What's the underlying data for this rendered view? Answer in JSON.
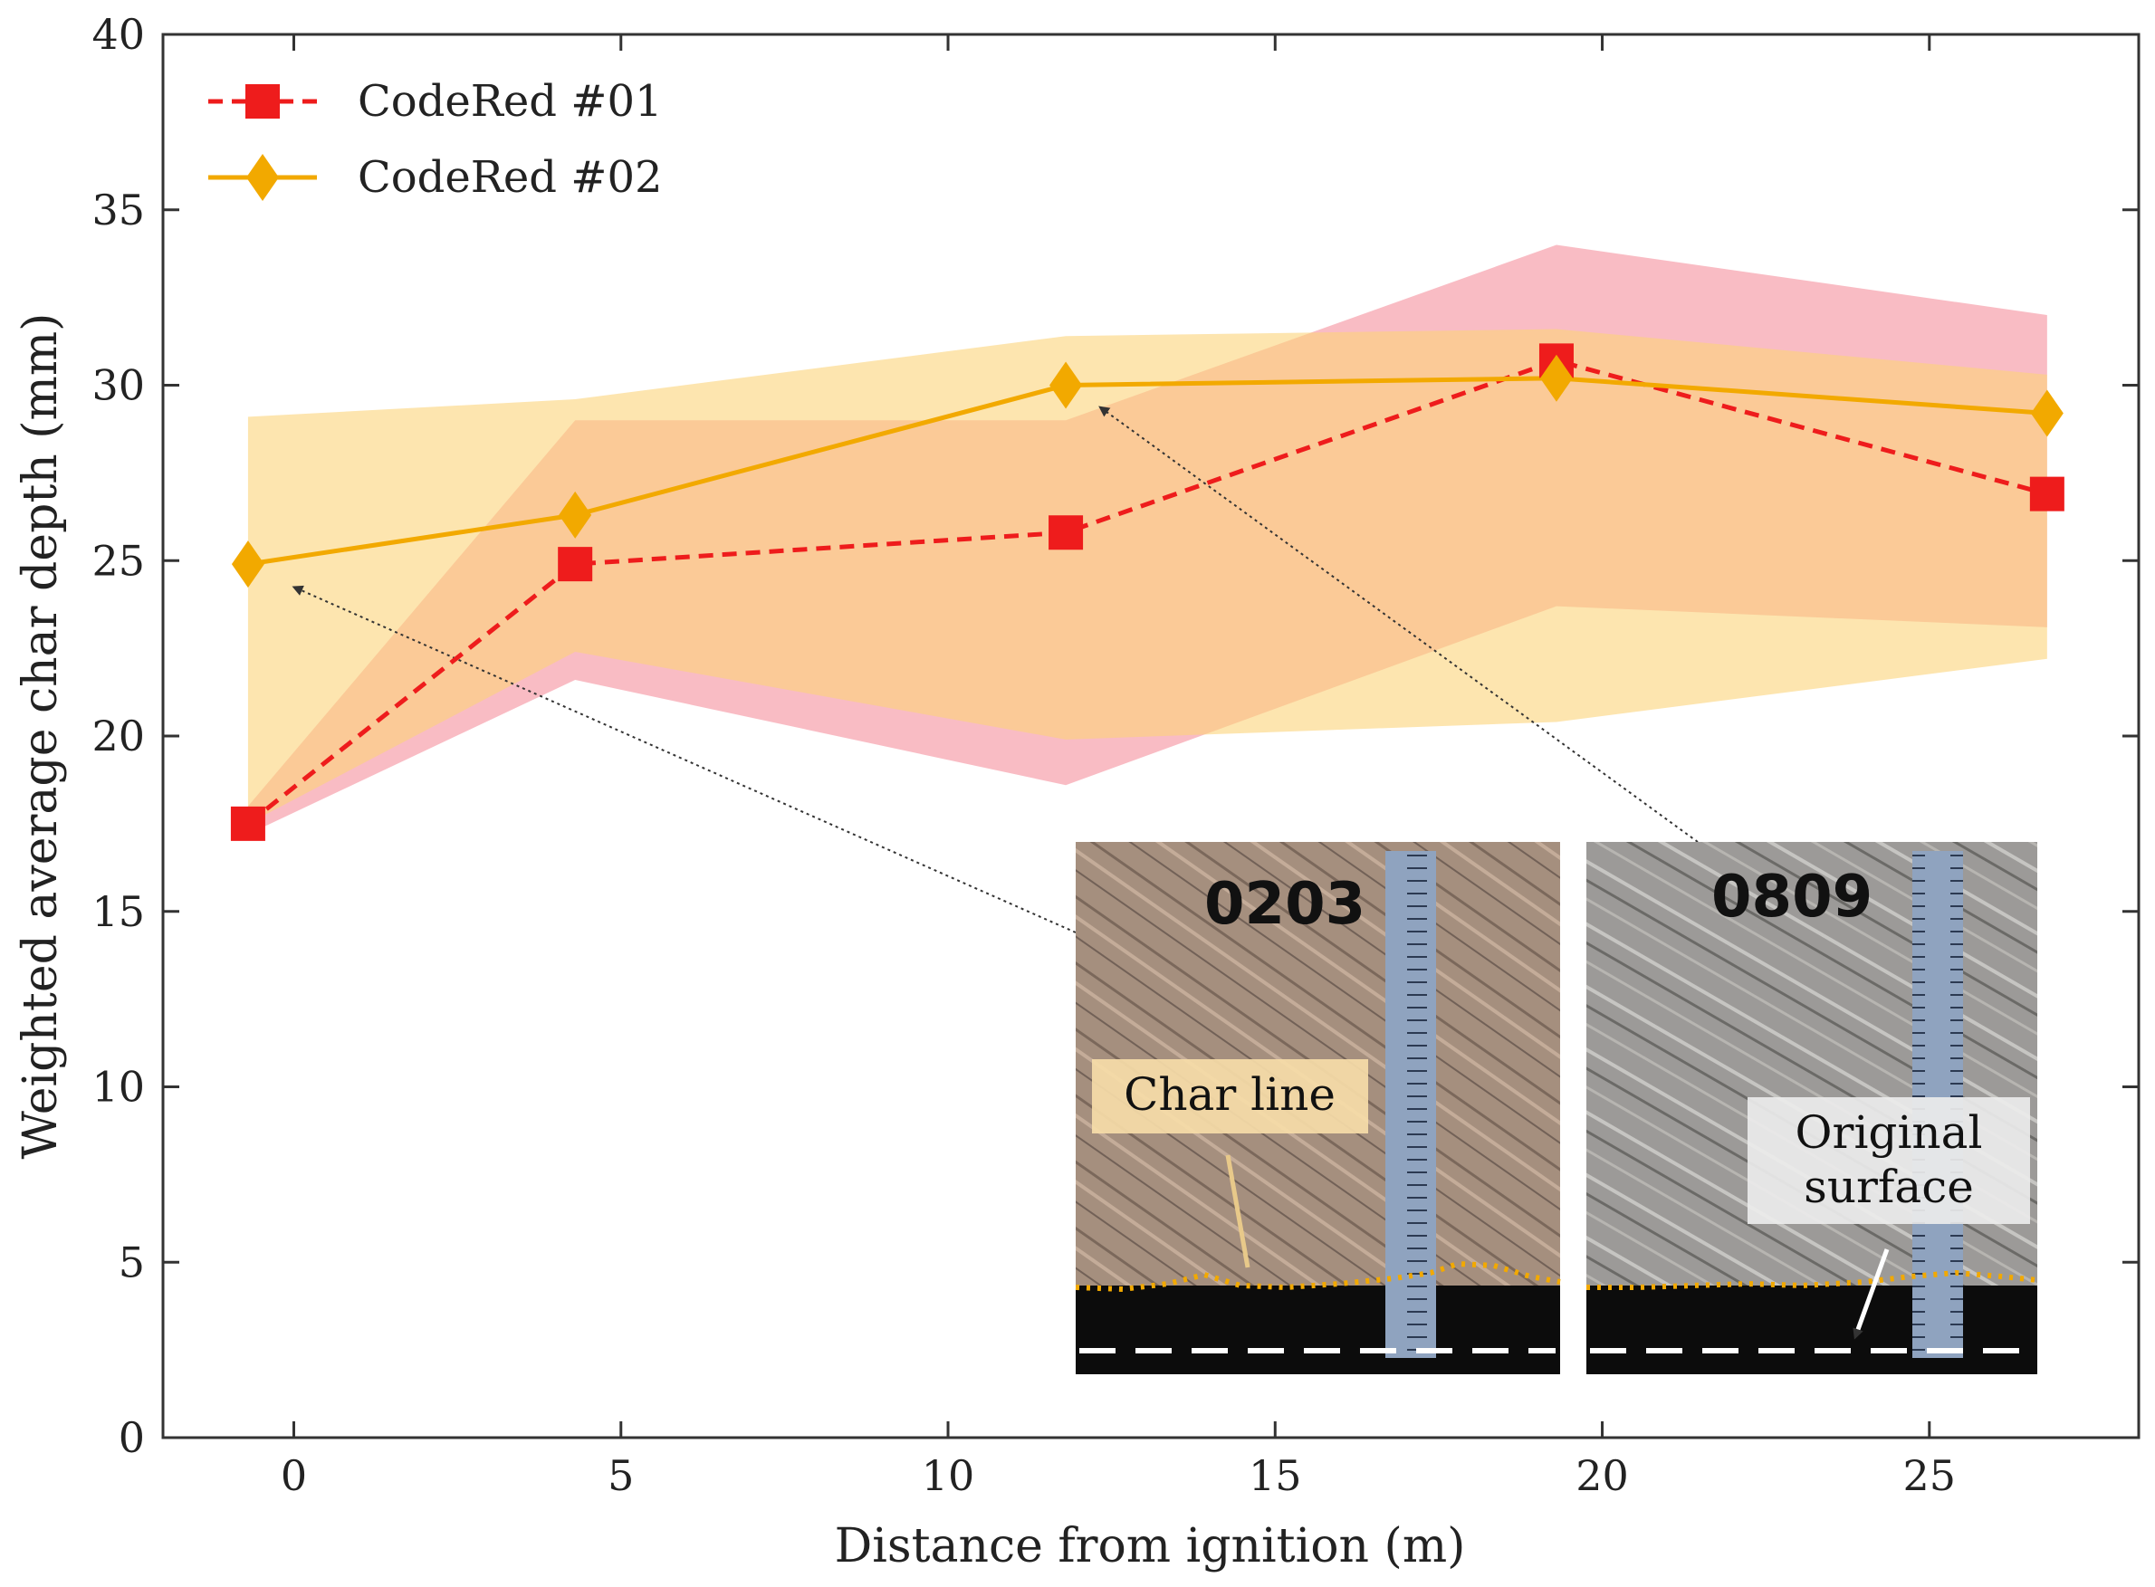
{
  "chart_data": {
    "type": "line",
    "xlabel": "Distance from ignition (m)",
    "ylabel": "Weighted average char depth (mm)",
    "xlim": [
      -2,
      28.2
    ],
    "ylim": [
      0,
      40
    ],
    "xticks": [
      0,
      5,
      10,
      15,
      20,
      25
    ],
    "yticks": [
      0,
      5,
      10,
      15,
      20,
      25,
      30,
      35,
      40
    ],
    "grid": false,
    "legend_position": "top-left",
    "series": [
      {
        "name": "CodeRed #01",
        "color": "#ee1c1c",
        "line_style": "dashed",
        "marker": "square",
        "band_color": "#f7a6b0",
        "points": [
          {
            "x": -0.7,
            "y": 17.5
          },
          {
            "x": 4.3,
            "y": 24.9
          },
          {
            "x": 11.8,
            "y": 25.8
          },
          {
            "x": 19.3,
            "y": 30.7
          },
          {
            "x": 26.8,
            "y": 26.9
          }
        ],
        "band_lower": [
          17.2,
          21.6,
          18.6,
          23.7,
          23.1
        ],
        "band_upper": [
          18.0,
          29.0,
          29.0,
          34.0,
          32.0
        ]
      },
      {
        "name": "CodeRed #02",
        "color": "#f2a900",
        "line_style": "solid",
        "marker": "diamond",
        "band_color": "#fbd47a",
        "points": [
          {
            "x": -0.7,
            "y": 24.9
          },
          {
            "x": 4.3,
            "y": 26.3
          },
          {
            "x": 11.8,
            "y": 30.0
          },
          {
            "x": 19.3,
            "y": 30.2
          },
          {
            "x": 26.8,
            "y": 29.2
          }
        ],
        "band_lower": [
          17.5,
          22.4,
          19.9,
          20.4,
          22.2
        ],
        "band_upper": [
          29.1,
          29.6,
          31.4,
          31.6,
          30.3
        ]
      }
    ],
    "annotations": [
      {
        "text": "Char line",
        "type": "inset-photo-label"
      },
      {
        "text": "Original surface",
        "type": "inset-photo-label"
      }
    ],
    "inset_photos": [
      {
        "label": "0203",
        "caption": "Char line"
      },
      {
        "label": "0809",
        "caption": "Original surface"
      }
    ]
  }
}
